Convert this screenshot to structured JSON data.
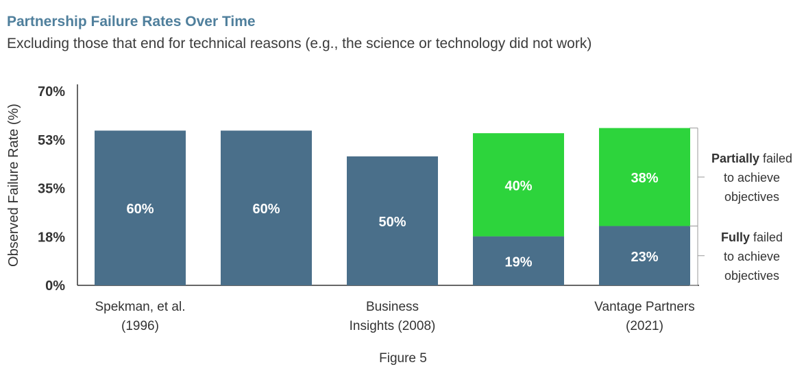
{
  "chart_data": {
    "type": "bar",
    "title": "Partnership Failure Rates Over Time",
    "subtitle": "Excluding those that end for technical reasons (e.g., the science or technology did not work)",
    "xlabel": "",
    "ylabel": "Observed Failure Rate (%)",
    "ylim": [
      0,
      70
    ],
    "yticks": [
      "0%",
      "18%",
      "35%",
      "53%",
      "70%"
    ],
    "x_labels": [
      {
        "lines": [
          "Spekman, et al.",
          "(1996)"
        ],
        "bar_index": 0
      },
      {
        "lines": [
          "Business",
          "Insights (2008)"
        ],
        "bar_index": 2
      },
      {
        "lines": [
          "Vantage Partners",
          "(2021)"
        ],
        "bar_index": 4
      }
    ],
    "bars": [
      {
        "segments": [
          {
            "value": 60,
            "label": "60%",
            "series": "fully"
          }
        ]
      },
      {
        "segments": [
          {
            "value": 60,
            "label": "60%",
            "series": "fully"
          }
        ]
      },
      {
        "segments": [
          {
            "value": 50,
            "label": "50%",
            "series": "fully"
          }
        ]
      },
      {
        "segments": [
          {
            "value": 19,
            "label": "19%",
            "series": "fully"
          },
          {
            "value": 40,
            "label": "40%",
            "series": "partially"
          }
        ]
      },
      {
        "segments": [
          {
            "value": 23,
            "label": "23%",
            "series": "fully"
          },
          {
            "value": 38,
            "label": "38%",
            "series": "partially"
          }
        ]
      }
    ],
    "series": [
      {
        "key": "fully",
        "color": "#4a6f8a"
      },
      {
        "key": "partially",
        "color": "#2dd43c"
      }
    ],
    "annotations": [
      {
        "series": "partially",
        "lines": [
          [
            {
              "t": "Partially",
              "b": true
            },
            {
              "t": " failed",
              "b": false
            }
          ],
          [
            {
              "t": "to achieve",
              "b": false
            }
          ],
          [
            {
              "t": "objectives",
              "b": false
            }
          ]
        ]
      },
      {
        "series": "fully",
        "lines": [
          [
            {
              "t": "Fully",
              "b": true
            },
            {
              "t": " failed",
              "b": false
            }
          ],
          [
            {
              "t": "to achieve",
              "b": false
            }
          ],
          [
            {
              "t": "objectives",
              "b": false
            }
          ]
        ]
      }
    ],
    "caption": "Figure 5",
    "grid": false,
    "legend": "right (bracket annotations)"
  }
}
